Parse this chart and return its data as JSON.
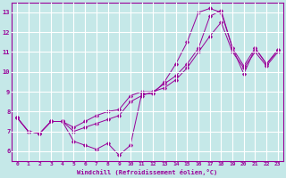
{
  "title": "",
  "xlabel": "Windchill (Refroidissement éolien,°C)",
  "ylabel": "",
  "bg_color": "#c5e8e8",
  "line_color": "#990099",
  "grid_color": "#ffffff",
  "xlim": [
    -0.5,
    23.5
  ],
  "ylim": [
    5.5,
    13.5
  ],
  "xticks": [
    0,
    1,
    2,
    3,
    4,
    5,
    6,
    7,
    8,
    9,
    10,
    11,
    12,
    13,
    14,
    15,
    16,
    17,
    18,
    19,
    20,
    21,
    22,
    23
  ],
  "yticks": [
    6,
    7,
    8,
    9,
    10,
    11,
    12,
    13
  ],
  "series": [
    {
      "x": [
        0,
        1,
        2,
        3,
        4,
        5,
        6,
        7,
        8,
        9,
        10,
        11,
        12,
        13,
        14,
        15,
        16,
        17,
        18,
        19,
        20,
        21,
        22,
        23
      ],
      "y": [
        7.7,
        7.0,
        6.9,
        7.5,
        7.5,
        6.5,
        6.3,
        6.1,
        6.4,
        5.8,
        6.3,
        8.9,
        8.9,
        9.5,
        10.4,
        11.5,
        13.0,
        13.2,
        13.0,
        11.2,
        9.9,
        11.2,
        10.4,
        11.1
      ]
    },
    {
      "x": [
        0,
        1,
        2,
        3,
        4,
        5,
        6,
        7,
        8,
        9,
        10,
        11,
        12,
        13,
        14,
        15,
        16,
        17,
        18,
        19,
        20,
        21,
        22,
        23
      ],
      "y": [
        7.7,
        7.0,
        6.9,
        7.5,
        7.5,
        7.2,
        7.5,
        7.8,
        8.0,
        8.1,
        8.8,
        9.0,
        9.0,
        9.4,
        9.8,
        10.4,
        11.2,
        12.8,
        13.1,
        11.2,
        10.3,
        11.2,
        10.4,
        11.1
      ]
    },
    {
      "x": [
        0,
        1,
        2,
        3,
        4,
        5,
        6,
        7,
        8,
        9,
        10,
        11,
        12,
        13,
        14,
        15,
        16,
        17,
        18,
        19,
        20,
        21,
        22,
        23
      ],
      "y": [
        7.7,
        7.0,
        6.9,
        7.5,
        7.5,
        7.0,
        7.2,
        7.4,
        7.6,
        7.8,
        8.5,
        8.8,
        9.0,
        9.2,
        9.6,
        10.2,
        11.0,
        11.8,
        12.5,
        11.0,
        10.2,
        11.0,
        10.3,
        11.0
      ]
    }
  ]
}
